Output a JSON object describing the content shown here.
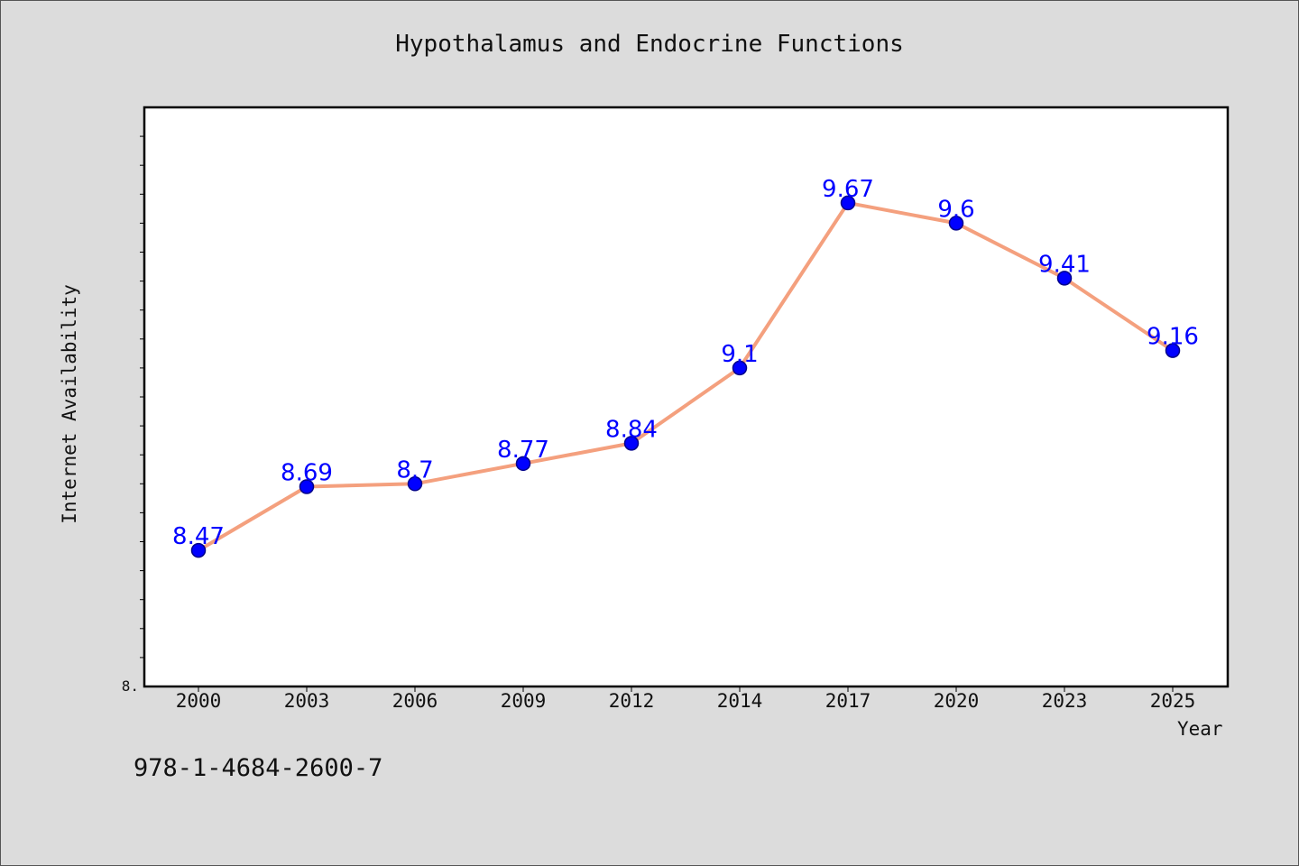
{
  "chart_data": {
    "type": "line",
    "title": "Hypothalamus and Endocrine Functions",
    "xlabel": "Year",
    "ylabel": "Internet Availability",
    "categories": [
      "2000",
      "2003",
      "2006",
      "2009",
      "2012",
      "2014",
      "2017",
      "2020",
      "2023",
      "2025"
    ],
    "series": [
      {
        "values": [
          8.47,
          8.69,
          8.7,
          8.77,
          8.84,
          9.1,
          9.67,
          9.6,
          9.41,
          9.16
        ]
      }
    ],
    "data_labels": [
      "8.47",
      "8.69",
      "8.7",
      "8.77",
      "8.84",
      "9.1",
      "9.67",
      "9.6",
      "9.41",
      "9.16"
    ],
    "y_tick_labels": [
      "8."
    ],
    "ylim": [
      8.0,
      10.0
    ],
    "grid": false,
    "line_color": "#f4a07e",
    "marker_color": "#0000ff",
    "label_color": "#0000ff"
  },
  "footer_text": "978-1-4684-2600-7"
}
